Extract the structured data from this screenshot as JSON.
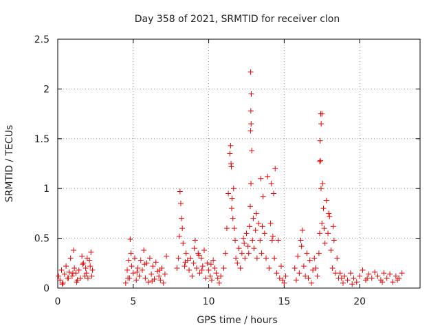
{
  "chart_data": {
    "type": "scatter",
    "title": "Day 358 of 2021, SRMTID for receiver clon",
    "xlabel": "GPS time / hours",
    "ylabel": "SRMTID / TECUs",
    "xlim": [
      0,
      24
    ],
    "ylim": [
      0,
      2.5
    ],
    "xticks": [
      0,
      5,
      10,
      15,
      20
    ],
    "yticks": [
      0,
      0.5,
      1,
      1.5,
      2,
      2.5
    ],
    "xtick_labels": [
      "0",
      "5",
      "10",
      "15",
      "20"
    ],
    "ytick_labels": [
      "0",
      "0.5",
      "1",
      "1.5",
      "2",
      "2.5"
    ],
    "grid": true,
    "marker": "+",
    "colors": {
      "series": "#e60000",
      "axis": "#000000",
      "grid": "#9a9a9a"
    },
    "series": [
      {
        "name": "SRMTID",
        "x": [
          0.05,
          0.15,
          0.25,
          0.35,
          0.45,
          0.55,
          0.65,
          0.75,
          0.85,
          0.95,
          1.05,
          1.1,
          1.2,
          1.3,
          1.4,
          1.5,
          1.6,
          1.7,
          1.8,
          1.85,
          1.9,
          2.0,
          2.1,
          2.15,
          2.2,
          2.3,
          0.3,
          0.7,
          1.0,
          1.25,
          1.65,
          1.95,
          2.25,
          4.5,
          4.6,
          4.7,
          4.75,
          4.8,
          4.85,
          4.9,
          5.0,
          5.1,
          5.2,
          5.3,
          5.4,
          5.5,
          5.6,
          5.7,
          5.8,
          5.9,
          6.0,
          6.1,
          6.2,
          6.3,
          6.4,
          6.5,
          6.6,
          6.7,
          6.8,
          6.9,
          7.0,
          7.1,
          7.2,
          4.65,
          5.25,
          5.75,
          6.25,
          6.75,
          7.9,
          8.0,
          8.05,
          8.1,
          8.15,
          8.2,
          8.25,
          8.3,
          8.4,
          8.5,
          8.6,
          8.7,
          8.8,
          8.9,
          9.0,
          9.1,
          9.2,
          9.3,
          9.4,
          9.5,
          9.6,
          9.7,
          9.8,
          9.9,
          10.0,
          10.1,
          10.2,
          10.3,
          10.4,
          10.5,
          10.6,
          10.7,
          10.8,
          9.05,
          9.35,
          9.55,
          10.15,
          8.45,
          11.0,
          11.1,
          11.2,
          11.3,
          11.4,
          11.45,
          11.5,
          11.55,
          11.6,
          11.65,
          11.7,
          11.75,
          11.8,
          11.9,
          12.0,
          12.1,
          12.2,
          12.3,
          12.4,
          12.5,
          12.6,
          12.7,
          12.75,
          12.8,
          12.85,
          12.9,
          12.95,
          13.0,
          13.1,
          13.2,
          13.3,
          13.4,
          13.5,
          13.6,
          13.7,
          13.8,
          13.9,
          14.0,
          14.1,
          14.2,
          14.3,
          14.4,
          14.5,
          14.6,
          14.7,
          14.8,
          14.9,
          15.0,
          15.1,
          12.78,
          12.82,
          12.79,
          12.81,
          12.77,
          13.45,
          13.55,
          14.15,
          14.25,
          14.35,
          11.48,
          11.52,
          12.35,
          12.65,
          13.15,
          15.7,
          15.8,
          15.9,
          16.0,
          16.1,
          16.2,
          16.3,
          16.4,
          16.5,
          16.6,
          16.7,
          16.8,
          16.9,
          17.0,
          17.1,
          17.2,
          17.3,
          17.35,
          17.4,
          17.45,
          17.5,
          17.55,
          17.6,
          17.65,
          17.7,
          17.8,
          17.9,
          18.0,
          18.1,
          18.2,
          18.3,
          18.4,
          18.5,
          18.6,
          16.15,
          17.38,
          17.42,
          17.36,
          17.44,
          17.5,
          17.95,
          18.25,
          18.7,
          18.8,
          18.9,
          19.0,
          19.2,
          19.4,
          19.6,
          19.8,
          20.0,
          20.2,
          20.4,
          20.6,
          20.8,
          21.0,
          21.2,
          21.4,
          21.6,
          21.8,
          22.0,
          22.2,
          22.4,
          22.6,
          22.8,
          19.5,
          20.5,
          21.5,
          22.5
        ],
        "y": [
          0.12,
          0.08,
          0.18,
          0.05,
          0.14,
          0.22,
          0.1,
          0.16,
          0.3,
          0.12,
          0.38,
          0.2,
          0.15,
          0.08,
          0.18,
          0.1,
          0.32,
          0.25,
          0.12,
          0.2,
          0.15,
          0.1,
          0.28,
          0.22,
          0.36,
          0.18,
          0.04,
          0.1,
          0.15,
          0.06,
          0.24,
          0.3,
          0.12,
          0.05,
          0.18,
          0.28,
          0.1,
          0.49,
          0.35,
          0.22,
          0.15,
          0.3,
          0.08,
          0.2,
          0.12,
          0.28,
          0.18,
          0.38,
          0.1,
          0.25,
          0.06,
          0.3,
          0.14,
          0.22,
          0.09,
          0.26,
          0.17,
          0.12,
          0.08,
          0.2,
          0.05,
          0.14,
          0.32,
          0.1,
          0.16,
          0.24,
          0.07,
          0.18,
          0.2,
          0.3,
          0.52,
          0.97,
          0.85,
          0.7,
          0.6,
          0.45,
          0.22,
          0.35,
          0.28,
          0.18,
          0.3,
          0.12,
          0.25,
          0.48,
          0.2,
          0.35,
          0.15,
          0.3,
          0.22,
          0.38,
          0.1,
          0.25,
          0.18,
          0.12,
          0.08,
          0.28,
          0.2,
          0.15,
          0.1,
          0.05,
          0.12,
          0.4,
          0.33,
          0.18,
          0.24,
          0.26,
          0.2,
          0.35,
          0.6,
          0.95,
          1.35,
          1.43,
          1.22,
          0.9,
          0.7,
          1.0,
          0.6,
          0.48,
          0.3,
          0.25,
          0.4,
          0.2,
          0.35,
          0.5,
          0.3,
          0.55,
          0.42,
          0.62,
          0.82,
          1.05,
          1.38,
          0.48,
          0.7,
          0.4,
          0.58,
          0.3,
          0.65,
          0.48,
          0.35,
          0.92,
          0.55,
          0.3,
          1.12,
          0.2,
          0.65,
          0.48,
          0.95,
          1.2,
          0.15,
          0.48,
          0.1,
          0.22,
          0.08,
          0.05,
          0.12,
          2.17,
          1.95,
          1.78,
          1.65,
          1.58,
          1.1,
          0.62,
          1.05,
          0.52,
          0.3,
          1.25,
          0.8,
          0.45,
          0.35,
          0.75,
          0.2,
          0.08,
          0.32,
          0.15,
          0.48,
          0.58,
          0.22,
          0.12,
          0.35,
          0.1,
          0.28,
          0.05,
          0.18,
          0.3,
          0.2,
          0.12,
          0.35,
          0.55,
          1.28,
          1.65,
          1.75,
          1.05,
          0.8,
          0.6,
          0.45,
          0.88,
          0.55,
          0.72,
          0.38,
          0.2,
          0.48,
          0.15,
          0.3,
          0.1,
          0.42,
          1.48,
          1.75,
          1.27,
          1.0,
          0.65,
          0.75,
          0.62,
          0.15,
          0.1,
          0.05,
          0.12,
          0.08,
          0.15,
          0.1,
          0.06,
          0.12,
          0.18,
          0.08,
          0.14,
          0.1,
          0.16,
          0.12,
          0.08,
          0.15,
          0.1,
          0.14,
          0.06,
          0.12,
          0.1,
          0.15,
          0.04,
          0.1,
          0.06,
          0.08
        ]
      }
    ]
  }
}
